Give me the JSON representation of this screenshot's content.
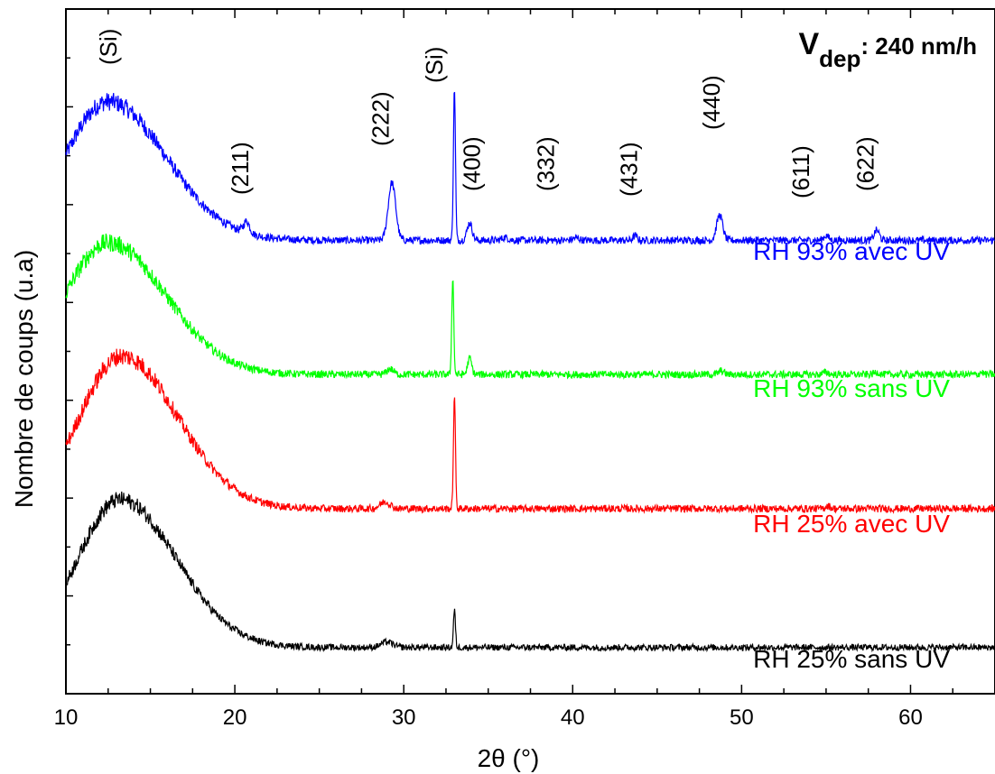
{
  "chart_data": {
    "type": "line",
    "title": {
      "main": "V",
      "subscript": "dep",
      "rest": ": 240 nm/h"
    },
    "xlabel": "2θ (°)",
    "ylabel": "Nombre de coups (u.a)",
    "xlim": [
      10,
      65
    ],
    "x_ticks": [
      10,
      20,
      30,
      40,
      50,
      60
    ],
    "y_ticks": "none",
    "grid": false,
    "legend": "inline labels at right",
    "peak_labels": [
      {
        "text": "(Si)",
        "x": 13.0
      },
      {
        "text": "(211)",
        "x": 20.8
      },
      {
        "text": "(222)",
        "x": 29.1
      },
      {
        "text": "(Si)",
        "x": 32.3
      },
      {
        "text": "(400)",
        "x": 34.5
      },
      {
        "text": "(332)",
        "x": 38.9
      },
      {
        "text": "(431)",
        "x": 43.8
      },
      {
        "text": "(440)",
        "x": 48.7
      },
      {
        "text": "(611)",
        "x": 54.0
      },
      {
        "text": "(622)",
        "x": 57.8
      }
    ],
    "series": [
      {
        "name": "RH 93% avec UV",
        "color": "#0000ff",
        "baseline": 9.8,
        "hump": {
          "center": 12.5,
          "amplitude": 3.0,
          "width": 3.4
        },
        "peaks": [
          [
            20.7,
            0.25,
            0.18
          ],
          [
            29.3,
            1.25,
            0.22
          ],
          [
            33.0,
            3.3,
            0.06
          ],
          [
            33.9,
            0.38,
            0.15
          ],
          [
            36.0,
            0.06,
            0.2
          ],
          [
            40.2,
            0.05,
            0.2
          ],
          [
            43.7,
            0.1,
            0.12
          ],
          [
            48.7,
            0.55,
            0.18
          ],
          [
            55.0,
            0.1,
            0.15
          ],
          [
            58.0,
            0.22,
            0.15
          ]
        ],
        "noise": 0.08
      },
      {
        "name": "RH 93% sans UV",
        "color": "#00ff00",
        "baseline": 6.9,
        "hump": {
          "center": 12.5,
          "amplitude": 2.85,
          "width": 3.4
        },
        "peaks": [
          [
            29.2,
            0.12,
            0.2
          ],
          [
            32.9,
            2.1,
            0.06
          ],
          [
            33.9,
            0.35,
            0.12
          ],
          [
            48.8,
            0.08,
            0.15
          ],
          [
            55.0,
            0.05,
            0.15
          ],
          [
            58.0,
            0.05,
            0.15
          ],
          [
            64.2,
            0.05,
            0.1
          ]
        ],
        "noise": 0.08
      },
      {
        "name": "RH 25% avec UV",
        "color": "#ff0000",
        "baseline": 4.0,
        "hump": {
          "center": 13.3,
          "amplitude": 3.3,
          "width": 3.3
        },
        "peaks": [
          [
            28.9,
            0.15,
            0.3
          ],
          [
            33.0,
            2.4,
            0.06
          ],
          [
            55.1,
            0.06,
            0.15
          ]
        ],
        "noise": 0.08
      },
      {
        "name": "RH 25% sans UV",
        "color": "#000000",
        "baseline": 1.0,
        "hump": {
          "center": 13.2,
          "amplitude": 3.2,
          "width": 3.3
        },
        "peaks": [
          [
            29.0,
            0.12,
            0.35
          ],
          [
            33.0,
            0.8,
            0.06
          ]
        ],
        "noise": 0.07
      }
    ],
    "y_range_units": [
      0,
      14.8
    ]
  }
}
